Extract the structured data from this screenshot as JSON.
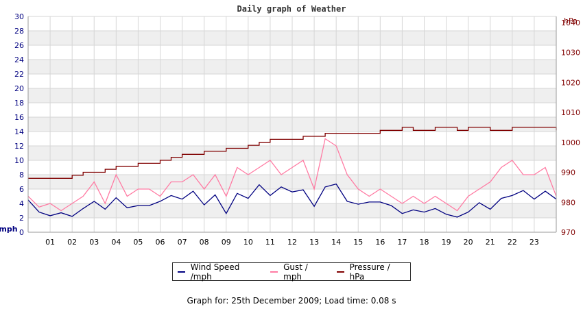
{
  "chart_data": {
    "type": "line",
    "title": "Daily graph of Weather",
    "ylabel_left": "mph",
    "ylabel_right": "hPa",
    "ylim_left": [
      0,
      30
    ],
    "ylim_right": [
      970,
      1042
    ],
    "yticks_left": [
      0,
      2,
      4,
      6,
      8,
      10,
      12,
      14,
      16,
      18,
      20,
      22,
      24,
      26,
      28,
      30
    ],
    "yticks_right": [
      970,
      980,
      990,
      1000,
      1010,
      1020,
      1030,
      1040
    ],
    "xlim": [
      0,
      24
    ],
    "x_tick_labels": [
      "01",
      "02",
      "03",
      "04",
      "05",
      "06",
      "07",
      "08",
      "09",
      "10",
      "11",
      "12",
      "13",
      "14",
      "15",
      "16",
      "17",
      "18",
      "19",
      "20",
      "21",
      "22",
      "23"
    ],
    "grid": true,
    "legend_position": "bottom-center",
    "colors": {
      "wind": "#000080",
      "gust": "#ff7ba3",
      "pressure": "#800000",
      "left_axis_text": "#000080",
      "right_axis_text": "#800000",
      "band": "#efefef",
      "grid": "#d6d6d6"
    },
    "series": [
      {
        "name": "Wind Speed /mph",
        "axis": "left",
        "x": [
          0,
          0.5,
          1,
          1.5,
          2,
          2.5,
          3,
          3.5,
          4,
          4.5,
          5,
          5.5,
          6,
          6.5,
          7,
          7.5,
          8,
          8.5,
          9,
          9.5,
          10,
          10.5,
          11,
          11.5,
          12,
          12.5,
          13,
          13.5,
          14,
          14.5,
          15,
          15.5,
          16,
          16.5,
          17,
          17.5,
          18,
          18.5,
          19,
          19.5,
          20,
          20.5,
          21,
          21.5,
          22,
          22.5,
          23,
          23.5,
          24
        ],
        "values": [
          4.5,
          2.8,
          2.3,
          2.7,
          2.2,
          3.3,
          4.3,
          3.2,
          4.8,
          3.4,
          3.7,
          3.7,
          4.3,
          5.1,
          4.6,
          5.7,
          3.8,
          5.2,
          2.6,
          5.4,
          4.7,
          6.6,
          5.1,
          6.3,
          5.6,
          5.9,
          3.6,
          6.3,
          6.7,
          4.3,
          3.9,
          4.2,
          4.2,
          3.7,
          2.6,
          3.1,
          2.8,
          3.3,
          2.5,
          2.1,
          2.8,
          4.1,
          3.2,
          4.7,
          5.1,
          5.8,
          4.6,
          5.7,
          4.6
        ]
      },
      {
        "name": "Gust / mph",
        "axis": "left",
        "x": [
          0,
          0.5,
          1,
          1.5,
          2,
          2.5,
          3,
          3.5,
          4,
          4.5,
          5,
          5.5,
          6,
          6.5,
          7,
          7.5,
          8,
          8.5,
          9,
          9.5,
          10,
          10.5,
          11,
          11.5,
          12,
          12.5,
          13,
          13.5,
          14,
          14.5,
          15,
          15.5,
          16,
          16.5,
          17,
          17.5,
          18,
          18.5,
          19,
          19.5,
          20,
          20.5,
          21,
          21.5,
          22,
          22.5,
          23,
          23.5,
          24
        ],
        "values": [
          5,
          3.5,
          4,
          3,
          4,
          5,
          7,
          4,
          8,
          5,
          6,
          6,
          5,
          7,
          7,
          8,
          6,
          8,
          5,
          9,
          8,
          9,
          10,
          8,
          9,
          10,
          6,
          13,
          12,
          8,
          6,
          5,
          6,
          5,
          4,
          5,
          4,
          5,
          4,
          3,
          5,
          6,
          7,
          9,
          10,
          8,
          8,
          9,
          5
        ]
      },
      {
        "name": "Pressure / hPa",
        "axis": "right",
        "x": [
          0,
          1,
          1.75,
          2,
          2.5,
          3,
          3.5,
          4,
          4.5,
          5,
          5.5,
          6,
          6.5,
          7,
          7.5,
          8,
          8.5,
          9,
          9.5,
          10,
          10.5,
          11,
          11.5,
          12,
          12.5,
          13,
          13.5,
          14,
          14.5,
          15,
          15.5,
          16,
          16.5,
          17,
          17.5,
          18,
          18.5,
          19,
          19.5,
          20,
          20.5,
          21,
          21.5,
          22,
          22.5,
          23,
          23.5,
          24
        ],
        "values": [
          988,
          988,
          988,
          989,
          990,
          990,
          991,
          992,
          992,
          993,
          993,
          994,
          995,
          996,
          996,
          997,
          997,
          998,
          998,
          999,
          1000,
          1001,
          1001,
          1001,
          1002,
          1002,
          1003,
          1003,
          1003,
          1003,
          1003,
          1004,
          1004,
          1005,
          1004,
          1004,
          1005,
          1005,
          1004,
          1005,
          1005,
          1004,
          1004,
          1005,
          1005,
          1005,
          1005,
          1004
        ]
      }
    ]
  },
  "legend": {
    "wind_label": "Wind Speed /mph",
    "gust_label": "Gust / mph",
    "pressure_label": "Pressure / hPa"
  },
  "footer": {
    "text": "Graph for: 25th December 2009; Load time: 0.08 s"
  }
}
